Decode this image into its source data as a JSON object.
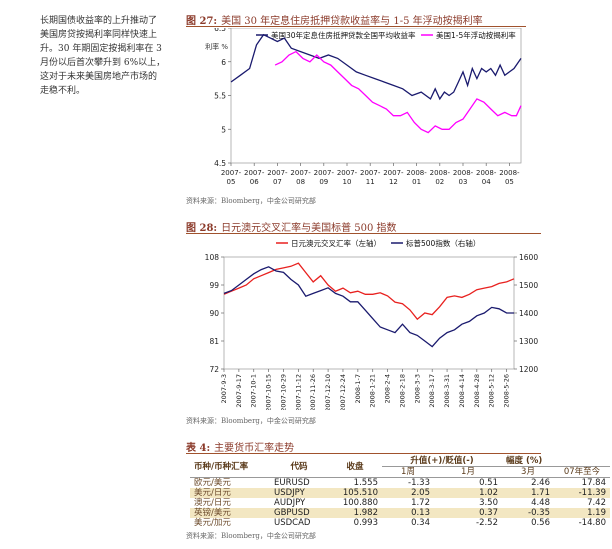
{
  "side_text": [
    "长期国债收益率的上升推动了",
    "美国房贷按揭利率同样快速上",
    "升。30 年期固定按揭利率在 3",
    "月份以后首次攀升到 6%以上，",
    "这对于未来美国房地产市场的",
    "走稳不利。"
  ],
  "fig27": {
    "label": "图 27:",
    "title": "美国 30 年定息住房抵押贷款收益率与 1-5 年浮动按揭利率",
    "unit": "利率 %",
    "source": "资料来源：Bloomberg，中金公司研究部",
    "colors": {
      "a": "#1a1a6e",
      "b": "#ff00ff"
    }
  },
  "fig28": {
    "label": "图 28:",
    "title": "日元澳元交叉汇率与美国标普 500 指数",
    "source": "资料来源：Bloomberg，中金公司研究部",
    "colors": {
      "a": "#e8211f",
      "b": "#1a1a6e"
    }
  },
  "chart_data": [
    {
      "type": "line",
      "legend": [
        "美国30年定息住房抵押贷款全国平均收益率",
        "美国1-5年浮动按揭利率"
      ],
      "legend_position": "top",
      "x_ticks": [
        "2007-05",
        "2007-06",
        "2007-07",
        "2007-08",
        "2007-09",
        "2007-10",
        "2007-11",
        "2007-12",
        "2008-01",
        "2008-02",
        "2008-03",
        "2008-04",
        "2008-05"
      ],
      "x_tick_lines": [
        [
          "2007-",
          "05"
        ],
        [
          "2007-",
          "06"
        ],
        [
          "2007-",
          "07"
        ],
        [
          "2007-",
          "08"
        ],
        [
          "2007-",
          "09"
        ],
        [
          "2007-",
          "10"
        ],
        [
          "2007-",
          "11"
        ],
        [
          "2007-",
          "12"
        ],
        [
          "2008-",
          "01"
        ],
        [
          "2008-",
          "02"
        ],
        [
          "2008-",
          "03"
        ],
        [
          "2008-",
          "04"
        ],
        [
          "2008-",
          "05"
        ]
      ],
      "ylim": [
        4.5,
        6.5
      ],
      "y_ticks": [
        4.5,
        5,
        5.5,
        6,
        6.5
      ],
      "series": [
        {
          "name": "美国30年定息住房抵押贷款全国平均收益率",
          "x": [
            0,
            0.4,
            0.8,
            1.1,
            1.4,
            1.7,
            2.0,
            2.3,
            2.6,
            3.0,
            3.4,
            3.8,
            4.2,
            4.6,
            5.0,
            5.4,
            5.8,
            6.2,
            6.6,
            7.0,
            7.4,
            7.8,
            8.2,
            8.6,
            8.8,
            9.0,
            9.2,
            9.4,
            9.6,
            9.8,
            10.0,
            10.2,
            10.4,
            10.6,
            10.8,
            11.0,
            11.2,
            11.4,
            11.6,
            11.8,
            12.0,
            12.2,
            12.5
          ],
          "y": [
            5.7,
            5.8,
            5.9,
            6.25,
            6.4,
            6.35,
            6.3,
            6.35,
            6.2,
            6.15,
            6.1,
            6.05,
            6.1,
            6.05,
            5.95,
            5.85,
            5.8,
            5.75,
            5.7,
            5.65,
            5.6,
            5.5,
            5.55,
            5.45,
            5.6,
            5.45,
            5.55,
            5.5,
            5.55,
            5.7,
            5.85,
            5.65,
            5.9,
            5.75,
            5.9,
            5.85,
            5.9,
            5.8,
            5.95,
            5.8,
            5.85,
            5.9,
            6.05
          ]
        },
        {
          "name": "美国1-5年浮动按揭利率",
          "x": [
            1.9,
            2.2,
            2.5,
            2.8,
            3.1,
            3.4,
            3.7,
            4.0,
            4.3,
            4.6,
            4.9,
            5.2,
            5.5,
            5.8,
            6.1,
            6.4,
            6.7,
            7.0,
            7.3,
            7.6,
            7.9,
            8.2,
            8.5,
            8.8,
            9.1,
            9.4,
            9.7,
            10.0,
            10.3,
            10.6,
            10.9,
            11.2,
            11.5,
            11.8,
            12.1,
            12.3,
            12.5
          ],
          "y": [
            5.95,
            6.0,
            6.1,
            6.15,
            6.05,
            6.0,
            6.1,
            6.0,
            5.95,
            5.85,
            5.75,
            5.65,
            5.6,
            5.5,
            5.4,
            5.35,
            5.3,
            5.2,
            5.2,
            5.25,
            5.1,
            5.0,
            4.95,
            5.05,
            5.0,
            5.0,
            5.1,
            5.15,
            5.3,
            5.45,
            5.4,
            5.3,
            5.2,
            5.25,
            5.2,
            5.2,
            5.35
          ]
        }
      ]
    },
    {
      "type": "line",
      "legend": [
        "日元澳元交叉汇率（左轴）",
        "标普500指数（右轴）"
      ],
      "legend_position": "top",
      "x_ticks": [
        "2007-9-3",
        "2007-9-17",
        "2007-10-1",
        "2007-10-15",
        "2007-10-29",
        "2007-11-12",
        "2007-11-26",
        "2007-12-10",
        "2007-12-24",
        "2008-1-7",
        "2008-1-21",
        "2008-2-4",
        "2008-2-18",
        "2008-3-3",
        "2008-3-17",
        "2008-3-31",
        "2008-4-14",
        "2008-4-28",
        "2008-5-12",
        "2008-5-26"
      ],
      "ylim_left": [
        72,
        108
      ],
      "y_ticks_left": [
        72,
        81,
        90,
        99,
        108
      ],
      "ylim_right": [
        1200,
        1600
      ],
      "y_ticks_right": [
        1200,
        1300,
        1400,
        1500,
        1600
      ],
      "series": [
        {
          "name": "日元澳元交叉汇率（左轴）",
          "axis": "left",
          "x": [
            0,
            0.5,
            1,
            1.5,
            2,
            2.5,
            3,
            3.5,
            4,
            4.5,
            5,
            5.5,
            6,
            6.5,
            7,
            7.5,
            8,
            8.5,
            9,
            9.5,
            10,
            10.5,
            11,
            11.5,
            12,
            12.5,
            13,
            13.5,
            14,
            14.5,
            15,
            15.5,
            16,
            16.5,
            17,
            17.5,
            18,
            18.5,
            19,
            19.5
          ],
          "y": [
            96,
            97,
            98,
            99,
            101,
            102,
            103,
            104,
            104.5,
            105,
            106,
            103,
            100,
            102,
            99,
            97,
            98,
            96.5,
            97,
            96,
            96,
            96.5,
            95.5,
            93.5,
            93,
            91,
            88,
            90,
            89.5,
            92,
            95,
            95.5,
            95,
            96,
            97.5,
            98,
            98.5,
            99.5,
            100,
            101
          ]
        },
        {
          "name": "标普500指数（右轴）",
          "axis": "right",
          "x": [
            0,
            0.5,
            1,
            1.5,
            2,
            2.5,
            3,
            3.5,
            4,
            4.5,
            5,
            5.5,
            6,
            6.5,
            7,
            7.5,
            8,
            8.5,
            9,
            9.5,
            10,
            10.5,
            11,
            11.5,
            12,
            12.5,
            13,
            13.5,
            14,
            14.5,
            15,
            15.5,
            16,
            16.5,
            17,
            17.5,
            18,
            18.5,
            19,
            19.5
          ],
          "y": [
            1470,
            1480,
            1500,
            1520,
            1540,
            1555,
            1565,
            1550,
            1545,
            1520,
            1500,
            1460,
            1470,
            1480,
            1490,
            1470,
            1460,
            1440,
            1440,
            1410,
            1380,
            1350,
            1340,
            1330,
            1360,
            1330,
            1320,
            1300,
            1280,
            1310,
            1330,
            1340,
            1360,
            1370,
            1390,
            1400,
            1420,
            1415,
            1400,
            1400
          ]
        }
      ]
    }
  ],
  "table4": {
    "label": "表 4:",
    "title": "主要货币汇率走势",
    "source": "资料来源：Bloomberg，中金公司研究部",
    "head": {
      "pair": "币种/币种汇率",
      "code": "代码",
      "close": "收盘",
      "chg_group": "升值(+)/贬值(-)",
      "range": "幅度 (%)",
      "w1": "1周",
      "m1": "1月",
      "m3": "3月",
      "ytd": "07年至今"
    },
    "rows": [
      {
        "pair": "欧元/美元",
        "code": "EURUSD",
        "close": "1.555",
        "w1": "-1.33",
        "m1": "0.51",
        "m3": "2.46",
        "ytd": "17.84",
        "shade": false
      },
      {
        "pair": "美元/日元",
        "code": "USDJPY",
        "close": "105.510",
        "w1": "2.05",
        "m1": "1.02",
        "m3": "1.71",
        "ytd": "-11.39",
        "shade": true
      },
      {
        "pair": "澳元/日元",
        "code": "AUDJPY",
        "close": "100.880",
        "w1": "1.72",
        "m1": "3.50",
        "m3": "4.48",
        "ytd": "7.42",
        "shade": false
      },
      {
        "pair": "英镑/美元",
        "code": "GBPUSD",
        "close": "1.982",
        "w1": "0.13",
        "m1": "0.37",
        "m3": "-0.35",
        "ytd": "1.19",
        "shade": true
      },
      {
        "pair": "美元/加元",
        "code": "USDCAD",
        "close": "0.993",
        "w1": "0.34",
        "m1": "-2.52",
        "m3": "0.56",
        "ytd": "-14.80",
        "shade": false
      }
    ]
  }
}
